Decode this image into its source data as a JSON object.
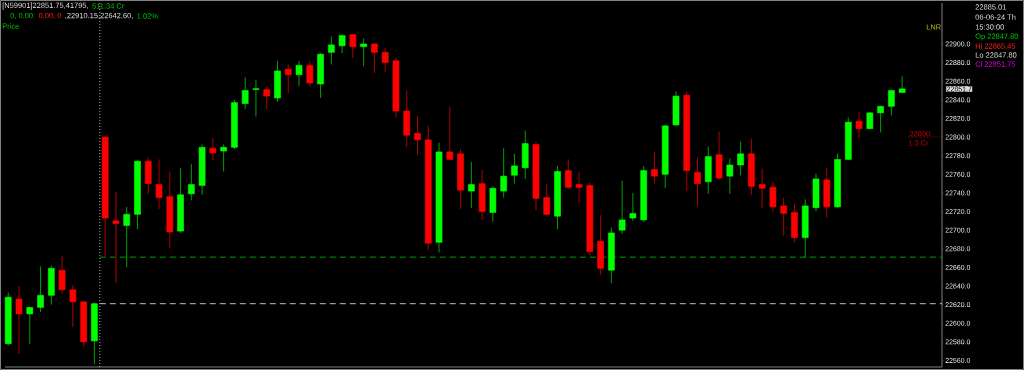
{
  "chart_data": {
    "type": "candlestick",
    "categories": [
      null,
      null,
      null,
      null,
      null,
      null,
      null,
      null,
      null,
      null,
      null,
      null,
      null,
      null,
      null,
      null,
      null,
      null,
      null,
      null,
      null,
      null,
      null,
      null,
      null,
      null,
      null,
      null,
      null,
      null,
      null,
      null,
      null,
      null,
      null,
      null,
      null,
      null,
      null,
      null,
      null,
      null,
      null,
      null,
      null,
      null,
      null,
      null,
      null,
      null,
      null,
      null,
      null,
      null,
      null,
      null,
      null,
      null,
      null,
      null,
      null,
      null,
      null,
      null,
      null,
      null,
      null,
      null,
      null,
      null,
      null,
      null,
      null,
      null,
      null,
      null,
      null,
      null,
      null,
      null,
      null,
      null,
      null,
      null
    ],
    "ohlc": [
      [
        22578,
        22633,
        22576,
        22628
      ],
      [
        22626,
        22640,
        22567,
        22610
      ],
      [
        22610,
        22618,
        22578,
        22617
      ],
      [
        22617,
        22661,
        22612,
        22630
      ],
      [
        22630,
        22662,
        22620,
        22659
      ],
      [
        22657,
        22672,
        22632,
        22636
      ],
      [
        22636,
        22641,
        22596,
        22623
      ],
      [
        22623,
        22624,
        22575,
        22580
      ],
      [
        22581,
        22622,
        22556,
        22621
      ],
      [
        22800,
        22801,
        22672,
        22713
      ],
      [
        22710,
        22741,
        22643,
        22707
      ],
      [
        22705,
        22725,
        22660,
        22717
      ],
      [
        22717,
        22775,
        22701,
        22774
      ],
      [
        22774,
        22778,
        22739,
        22750
      ],
      [
        22749,
        22776,
        22723,
        22735
      ],
      [
        22736,
        22763,
        22681,
        22698
      ],
      [
        22699,
        22767,
        22697,
        22738
      ],
      [
        22739,
        22771,
        22732,
        22749
      ],
      [
        22748,
        22792,
        22738,
        22789
      ],
      [
        22788,
        22799,
        22775,
        22783
      ],
      [
        22785,
        22792,
        22763,
        22789
      ],
      [
        22789,
        22840,
        22787,
        22837
      ],
      [
        22836,
        22864,
        22830,
        22850
      ],
      [
        22851,
        22861,
        22822,
        22852
      ],
      [
        22851,
        22855,
        22830,
        22844
      ],
      [
        22842,
        22882,
        22838,
        22871
      ],
      [
        22873,
        22878,
        22847,
        22867
      ],
      [
        22867,
        22882,
        22855,
        22877
      ],
      [
        22877,
        22882,
        22854,
        22858
      ],
      [
        22857,
        22890,
        22842,
        22889
      ],
      [
        22891,
        22908,
        22878,
        22899
      ],
      [
        22898,
        22910,
        22890,
        22909
      ],
      [
        22910,
        22910,
        22885,
        22897
      ],
      [
        22897,
        22906,
        22876,
        22900
      ],
      [
        22900,
        22901,
        22869,
        22891
      ],
      [
        22891,
        22896,
        22870,
        22880
      ],
      [
        22882,
        22885,
        22821,
        22828
      ],
      [
        22828,
        22850,
        22789,
        22802
      ],
      [
        22804,
        22823,
        22781,
        22797
      ],
      [
        22797,
        22812,
        22679,
        22686
      ],
      [
        22687,
        22794,
        22676,
        22784
      ],
      [
        22784,
        22832,
        22775,
        22776
      ],
      [
        22782,
        22787,
        22723,
        22743
      ],
      [
        22742,
        22773,
        22724,
        22749
      ],
      [
        22750,
        22765,
        22711,
        22720
      ],
      [
        22719,
        22747,
        22709,
        22745
      ],
      [
        22742,
        22788,
        22735,
        22758
      ],
      [
        22759,
        22782,
        22750,
        22769
      ],
      [
        22767,
        22807,
        22755,
        22793
      ],
      [
        22792,
        22795,
        22721,
        22734
      ],
      [
        22735,
        22749,
        22716,
        22717
      ],
      [
        22715,
        22769,
        22701,
        22763
      ],
      [
        22764,
        22776,
        22744,
        22746
      ],
      [
        22749,
        22762,
        22729,
        22746
      ],
      [
        22748,
        22751,
        22673,
        22677
      ],
      [
        22688,
        22716,
        22652,
        22659
      ],
      [
        22657,
        22703,
        22643,
        22697
      ],
      [
        22700,
        22753,
        22696,
        22711
      ],
      [
        22713,
        22740,
        22710,
        22718
      ],
      [
        22711,
        22769,
        22709,
        22764
      ],
      [
        22765,
        22784,
        22750,
        22758
      ],
      [
        22760,
        22813,
        22745,
        22812
      ],
      [
        22813,
        22849,
        22812,
        22844
      ],
      [
        22845,
        22849,
        22742,
        22764
      ],
      [
        22762,
        22778,
        22726,
        22750
      ],
      [
        22752,
        22790,
        22739,
        22779
      ],
      [
        22781,
        22806,
        22754,
        22756
      ],
      [
        22758,
        22777,
        22739,
        22770
      ],
      [
        22770,
        22795,
        22759,
        22782
      ],
      [
        22782,
        22798,
        22738,
        22747
      ],
      [
        22749,
        22766,
        22724,
        22745
      ],
      [
        22746,
        22752,
        22720,
        22725
      ],
      [
        22726,
        22735,
        22694,
        22718
      ],
      [
        22719,
        22728,
        22687,
        22692
      ],
      [
        22692,
        22733,
        22670,
        22726
      ],
      [
        22724,
        22761,
        22720,
        22755
      ],
      [
        22754,
        22767,
        22714,
        22725
      ],
      [
        22725,
        22782,
        22724,
        22776
      ],
      [
        22776,
        22821,
        22775,
        22816
      ],
      [
        22817,
        22827,
        22799,
        22809
      ],
      [
        22809,
        22827,
        22808,
        22826
      ],
      [
        22826,
        22834,
        22805,
        22833
      ],
      [
        22833,
        22851,
        22823,
        22850
      ],
      [
        22847.8,
        22865.45,
        22847.8,
        22851.75
      ]
    ],
    "ylim": [
      22553,
      22944
    ],
    "yticks": [
      {
        "value": 22560,
        "label": "22560.0"
      },
      {
        "value": 22580,
        "label": "22580.0"
      },
      {
        "value": 22600,
        "label": "22600.0"
      },
      {
        "value": 22620,
        "label": "22620.0"
      },
      {
        "value": 22640,
        "label": "22640.0"
      },
      {
        "value": 22660,
        "label": "22660.0"
      },
      {
        "value": 22680,
        "label": "22680.0"
      },
      {
        "value": 22700,
        "label": "22700.0"
      },
      {
        "value": 22720,
        "label": "22720.0"
      },
      {
        "value": 22740,
        "label": "22740.0"
      },
      {
        "value": 22760,
        "label": "22760.0"
      },
      {
        "value": 22780,
        "label": "22780.0"
      },
      {
        "value": 22800,
        "label": "22800.0"
      },
      {
        "value": 22820,
        "label": "22820.0"
      },
      {
        "value": 22840,
        "label": "22840.0"
      },
      {
        "value": 22860,
        "label": "22860.0"
      },
      {
        "value": 22880,
        "label": "22880.0"
      },
      {
        "value": 22900,
        "label": "22900.0"
      }
    ],
    "tick_labels": "y",
    "ref_lines": [
      {
        "axis": "y",
        "value": 22671,
        "color": "#00a000",
        "line_style": "dashed"
      },
      {
        "axis": "y",
        "value": 22621,
        "color": "#c0c0c0",
        "line_style": "dashed"
      },
      {
        "axis": "y",
        "value": 22800,
        "label": "22800",
        "color": "#c00000",
        "line_style": "dotted"
      }
    ],
    "annotations": [
      "[N59901]22851.75,41795,",
      "511.34 Cr",
      "0,  0.00:",
      "0.00,  0",
      ",22910.15,22642.60,",
      "1.02%",
      "Price",
      "LNR",
      "22885.01",
      "06-06-24 Th",
      "15:30:00",
      "Op 22847.80",
      "Hi 22865.45",
      "Lo 22847.80",
      "Cl 22851.75",
      "1.3 Cr",
      "22851.7"
    ]
  }
}
